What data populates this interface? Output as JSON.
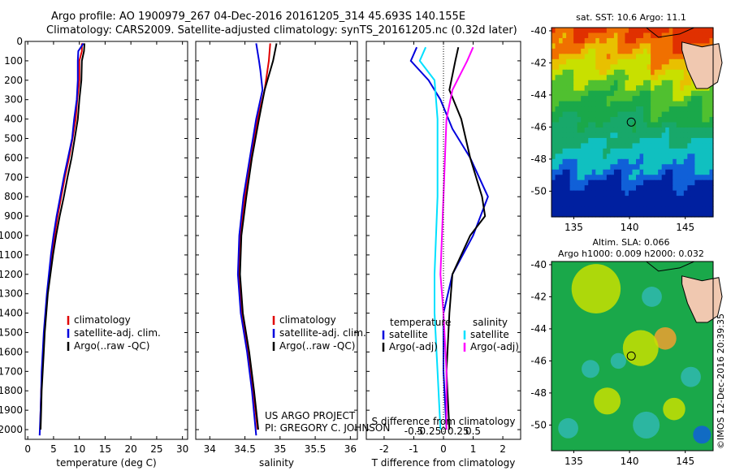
{
  "header": {
    "line1": "Argo profile: AO 1900979_267 04-Dec-2016 20161205_314 45.693S 140.155E",
    "line2": "Climatology: CARS2009. Satellite-adjusted climatology: synTS_20161205.nc (0.32d later)"
  },
  "side_label": "©IMOS 12-Dec-2016 20:39:35",
  "project": {
    "line1": "US ARGO PROJECT",
    "line2": "PI: GREGORY C. JOHNSON"
  },
  "colors": {
    "clim": "#e00000",
    "sat": "#0000dd",
    "argo": "#000000",
    "sat_diff": "#00e0ff",
    "argo_sal_diff": "#ff00ff",
    "map_sea": "#1aa84a",
    "map_land": "#f0c8b0"
  },
  "chart_data": [
    {
      "id": "temperature",
      "type": "line",
      "xlabel": "temperature (deg C)",
      "ylabel": "",
      "xlim": [
        -0.5,
        31
      ],
      "ylim": [
        2050,
        0
      ],
      "xticks": [
        0,
        5,
        10,
        15,
        20,
        25,
        30
      ],
      "yticks": [
        0,
        100,
        200,
        300,
        400,
        500,
        600,
        700,
        800,
        900,
        1000,
        1100,
        1200,
        1300,
        1400,
        1500,
        1600,
        1700,
        1800,
        1900,
        2000
      ],
      "legend": [
        "climatology",
        "satellite-adj. clim.",
        "Argo(..raw -QC)"
      ],
      "series": [
        {
          "name": "climatology",
          "color": "#e00000",
          "points": [
            [
              10.5,
              10
            ],
            [
              10.5,
              50
            ],
            [
              10.0,
              100
            ],
            [
              10.0,
              200
            ],
            [
              9.6,
              300
            ],
            [
              9.3,
              400
            ],
            [
              8.7,
              500
            ],
            [
              8.0,
              600
            ],
            [
              7.2,
              700
            ],
            [
              6.5,
              800
            ],
            [
              5.8,
              900
            ],
            [
              5.2,
              1000
            ],
            [
              4.7,
              1100
            ],
            [
              4.2,
              1200
            ],
            [
              3.8,
              1300
            ],
            [
              3.5,
              1400
            ],
            [
              3.2,
              1500
            ],
            [
              3.0,
              1600
            ],
            [
              2.8,
              1700
            ],
            [
              2.6,
              1800
            ],
            [
              2.5,
              1900
            ],
            [
              2.4,
              2000
            ]
          ]
        },
        {
          "name": "satellite-adj. clim.",
          "color": "#0000dd",
          "points": [
            [
              10.8,
              10
            ],
            [
              9.8,
              50
            ],
            [
              9.7,
              100
            ],
            [
              9.7,
              200
            ],
            [
              9.5,
              300
            ],
            [
              9.0,
              400
            ],
            [
              8.6,
              500
            ],
            [
              7.8,
              600
            ],
            [
              7.0,
              700
            ],
            [
              6.3,
              800
            ],
            [
              5.6,
              900
            ],
            [
              5.0,
              1000
            ],
            [
              4.5,
              1100
            ],
            [
              4.1,
              1200
            ],
            [
              3.7,
              1300
            ],
            [
              3.4,
              1400
            ],
            [
              3.1,
              1500
            ],
            [
              2.9,
              1600
            ],
            [
              2.7,
              1700
            ],
            [
              2.6,
              1800
            ],
            [
              2.5,
              1900
            ],
            [
              2.3,
              2030
            ]
          ]
        },
        {
          "name": "Argo(..raw -QC)",
          "color": "#000000",
          "points": [
            [
              11.0,
              10
            ],
            [
              10.9,
              50
            ],
            [
              10.5,
              100
            ],
            [
              10.4,
              200
            ],
            [
              10.0,
              300
            ],
            [
              9.7,
              400
            ],
            [
              9.1,
              500
            ],
            [
              8.5,
              600
            ],
            [
              7.7,
              700
            ],
            [
              7.0,
              800
            ],
            [
              6.2,
              900
            ],
            [
              5.5,
              1000
            ],
            [
              4.9,
              1100
            ],
            [
              4.4,
              1200
            ],
            [
              3.9,
              1300
            ],
            [
              3.6,
              1400
            ],
            [
              3.3,
              1500
            ],
            [
              3.1,
              1600
            ],
            [
              2.9,
              1700
            ],
            [
              2.7,
              1800
            ],
            [
              2.6,
              1900
            ],
            [
              2.5,
              2000
            ]
          ]
        }
      ]
    },
    {
      "id": "salinity",
      "type": "line",
      "xlabel": "salinity",
      "xlim": [
        33.8,
        36.1
      ],
      "ylim": [
        2050,
        0
      ],
      "xticks": [
        34,
        34.5,
        35,
        35.5,
        36
      ],
      "yticks": [
        0,
        100,
        200,
        300,
        400,
        500,
        600,
        700,
        800,
        900,
        1000,
        1100,
        1200,
        1300,
        1400,
        1500,
        1600,
        1700,
        1800,
        1900,
        2000
      ],
      "legend": [
        "climatology",
        "satellite-adj. clim.",
        "Argo(..raw -QC)"
      ],
      "series": [
        {
          "name": "climatology",
          "color": "#e00000",
          "points": [
            [
              34.86,
              10
            ],
            [
              34.84,
              100
            ],
            [
              34.78,
              250
            ],
            [
              34.68,
              400
            ],
            [
              34.58,
              600
            ],
            [
              34.5,
              800
            ],
            [
              34.44,
              1000
            ],
            [
              34.42,
              1200
            ],
            [
              34.46,
              1400
            ],
            [
              34.55,
              1600
            ],
            [
              34.62,
              1800
            ],
            [
              34.68,
              2000
            ]
          ]
        },
        {
          "name": "satellite-adj. clim.",
          "color": "#0000dd",
          "points": [
            [
              34.66,
              10
            ],
            [
              34.7,
              100
            ],
            [
              34.72,
              150
            ],
            [
              34.75,
              250
            ],
            [
              34.66,
              400
            ],
            [
              34.57,
              600
            ],
            [
              34.48,
              800
            ],
            [
              34.42,
              1000
            ],
            [
              34.4,
              1200
            ],
            [
              34.44,
              1400
            ],
            [
              34.53,
              1600
            ],
            [
              34.6,
              1800
            ],
            [
              34.66,
              2030
            ]
          ]
        },
        {
          "name": "Argo(..raw -QC)",
          "color": "#000000",
          "points": [
            [
              34.95,
              10
            ],
            [
              34.9,
              100
            ],
            [
              34.78,
              250
            ],
            [
              34.7,
              400
            ],
            [
              34.6,
              600
            ],
            [
              34.52,
              800
            ],
            [
              34.45,
              1000
            ],
            [
              34.43,
              1200
            ],
            [
              34.47,
              1400
            ],
            [
              34.56,
              1600
            ],
            [
              34.63,
              1800
            ],
            [
              34.69,
              2000
            ]
          ]
        }
      ]
    },
    {
      "id": "differences",
      "type": "line",
      "xlabel": "T difference from climatology",
      "xlabel_top": "S difference from climatology",
      "xlim": [
        -2.6,
        2.6
      ],
      "ylim": [
        2050,
        0
      ],
      "xticks": [
        -2,
        -1,
        0,
        1,
        2
      ],
      "xticks_top": [
        -0.5,
        -0.25,
        0,
        0.25,
        0.5
      ],
      "yticks": [
        0,
        100,
        200,
        300,
        400,
        500,
        600,
        700,
        800,
        900,
        1000,
        1100,
        1200,
        1300,
        1400,
        1500,
        1600,
        1700,
        1800,
        1900,
        2000
      ],
      "legend_temp_title": "temperature",
      "legend_sal_title": "salinity",
      "legend": [
        "satellite",
        "Argo(-adj)",
        "satellite",
        "Argo(-adj)"
      ],
      "series": [
        {
          "name": "satellite",
          "color": "#0000dd",
          "points": [
            [
              -0.9,
              30
            ],
            [
              -1.1,
              100
            ],
            [
              -0.5,
              200
            ],
            [
              -0.1,
              300
            ],
            [
              0.3,
              450
            ],
            [
              0.9,
              600
            ],
            [
              1.5,
              800
            ],
            [
              1.0,
              1000
            ],
            [
              0.3,
              1200
            ],
            [
              0.0,
              1400
            ],
            [
              0.0,
              1700
            ],
            [
              0.1,
              2000
            ]
          ]
        },
        {
          "name": "Argo(-adj)",
          "color": "#000000",
          "points": [
            [
              0.5,
              30
            ],
            [
              0.4,
              100
            ],
            [
              0.2,
              250
            ],
            [
              0.6,
              400
            ],
            [
              0.9,
              600
            ],
            [
              1.3,
              800
            ],
            [
              1.4,
              900
            ],
            [
              0.9,
              1000
            ],
            [
              0.3,
              1200
            ],
            [
              0.2,
              1400
            ],
            [
              0.1,
              1700
            ],
            [
              0.2,
              2000
            ]
          ]
        },
        {
          "name": "satellite",
          "color": "#00e0ff",
          "points": [
            [
              -0.6,
              30
            ],
            [
              -0.8,
              100
            ],
            [
              -0.3,
              200
            ],
            [
              -0.2,
              400
            ],
            [
              -0.2,
              800
            ],
            [
              -0.3,
              1200
            ],
            [
              -0.3,
              1400
            ],
            [
              -0.2,
              1700
            ],
            [
              -0.1,
              2000
            ]
          ]
        },
        {
          "name": "Argo(-adj)",
          "color": "#ff00ff",
          "points": [
            [
              1.0,
              30
            ],
            [
              0.8,
              100
            ],
            [
              0.3,
              250
            ],
            [
              0.1,
              400
            ],
            [
              0.0,
              800
            ],
            [
              -0.1,
              1200
            ],
            [
              0.0,
              1400
            ],
            [
              0.1,
              1700
            ],
            [
              0.1,
              2000
            ]
          ]
        }
      ]
    },
    {
      "id": "sst_map",
      "type": "heatmap",
      "title": "sat. SST: 10.6 Argo: 11.1",
      "xticks": [
        135,
        140,
        145
      ],
      "yticks": [
        -40,
        -42,
        -44,
        -46,
        -48,
        -50
      ],
      "xlim": [
        133,
        147.5
      ],
      "ylim": [
        -51.6,
        -39.8
      ],
      "bands": [
        [
          "#e03000",
          -40
        ],
        [
          "#f07000",
          -41
        ],
        [
          "#e8c000",
          -42
        ],
        [
          "#c8e000",
          -43
        ],
        [
          "#50c030",
          -44
        ],
        [
          "#1aa84a",
          -45.5
        ],
        [
          "#18a86a",
          -47
        ],
        [
          "#10c0c0",
          -48.5
        ],
        [
          "#1060d8",
          -49.5
        ],
        [
          "#0020a0",
          -51
        ]
      ],
      "profile": [
        140.155,
        -45.693
      ]
    },
    {
      "id": "sla_map",
      "type": "heatmap",
      "title_line1": "Altim. SLA: 0.066",
      "title_line2": "Argo h1000: 0.009 h2000: 0.032",
      "xticks": [
        135,
        140,
        145
      ],
      "yticks": [
        -40,
        -42,
        -44,
        -46,
        -48,
        -50
      ],
      "xlim": [
        133,
        147.5
      ],
      "ylim": [
        -51.6,
        -39.8
      ],
      "profile": [
        140.155,
        -45.693
      ]
    }
  ]
}
